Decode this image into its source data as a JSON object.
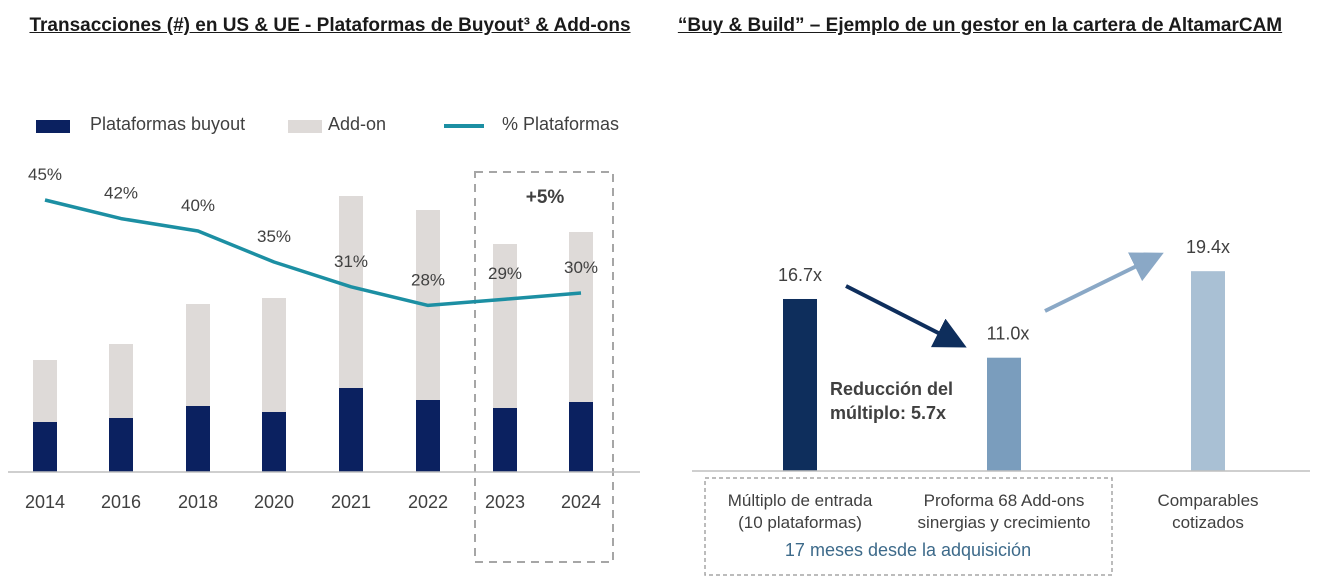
{
  "left_title": "Transacciones (#) en US & UE -  Plataformas de Buyout³ & Add-ons",
  "right_title": "“Buy & Build” – Ejemplo de un gestor en la cartera de AltamarCAM",
  "legend": {
    "buyout": "Plataformas buyout",
    "addon": "Add-on",
    "pct": "% Plataformas"
  },
  "colors": {
    "buyout": "#0b2160",
    "addon": "#dedad8",
    "pct_line": "#1c8fa3",
    "entry_bar": "#0e2e5c",
    "proforma_bar": "#7a9dbd",
    "comparables_bar": "#a9c0d4",
    "arrow_down": "#0e2e5c",
    "arrow_up": "#8aa8c6",
    "highlight_text": "#3d6a8a"
  },
  "chart_data": [
    {
      "type": "bar",
      "stacked": true,
      "categories": [
        "2014",
        "2016",
        "2018",
        "2020",
        "2021",
        "2022",
        "2023",
        "2024"
      ],
      "series": [
        {
          "name": "Plataformas buyout",
          "values": [
            25,
            27,
            33,
            30,
            42,
            36,
            32,
            35
          ]
        },
        {
          "name": "Add-on",
          "values": [
            31,
            37,
            51,
            57,
            96,
            95,
            82,
            85
          ]
        },
        {
          "name": "% Plataformas",
          "render": "line",
          "labels": [
            "45%",
            "42%",
            "40%",
            "35%",
            "31%",
            "28%",
            "29%",
            "30%"
          ],
          "values": [
            45,
            42,
            40,
            35,
            31,
            28,
            29,
            30
          ]
        }
      ],
      "highlight": {
        "categories": [
          "2023",
          "2024"
        ],
        "label": "+5%"
      },
      "grid": false
    },
    {
      "type": "bar",
      "categories": [
        "Múltiplo de entrada\n(10 plataformas)",
        "Proforma 68 Add-ons\nsinergias y crecimiento",
        "Comparables\ncotizados"
      ],
      "values": [
        16.7,
        11.0,
        19.4
      ],
      "labels": [
        "16.7x",
        "11.0x",
        "19.4x"
      ],
      "annotation": "Reducción del\nmúltiplo: 5.7x",
      "box_note": "17 meses desde la adquisición",
      "grid": false
    }
  ]
}
